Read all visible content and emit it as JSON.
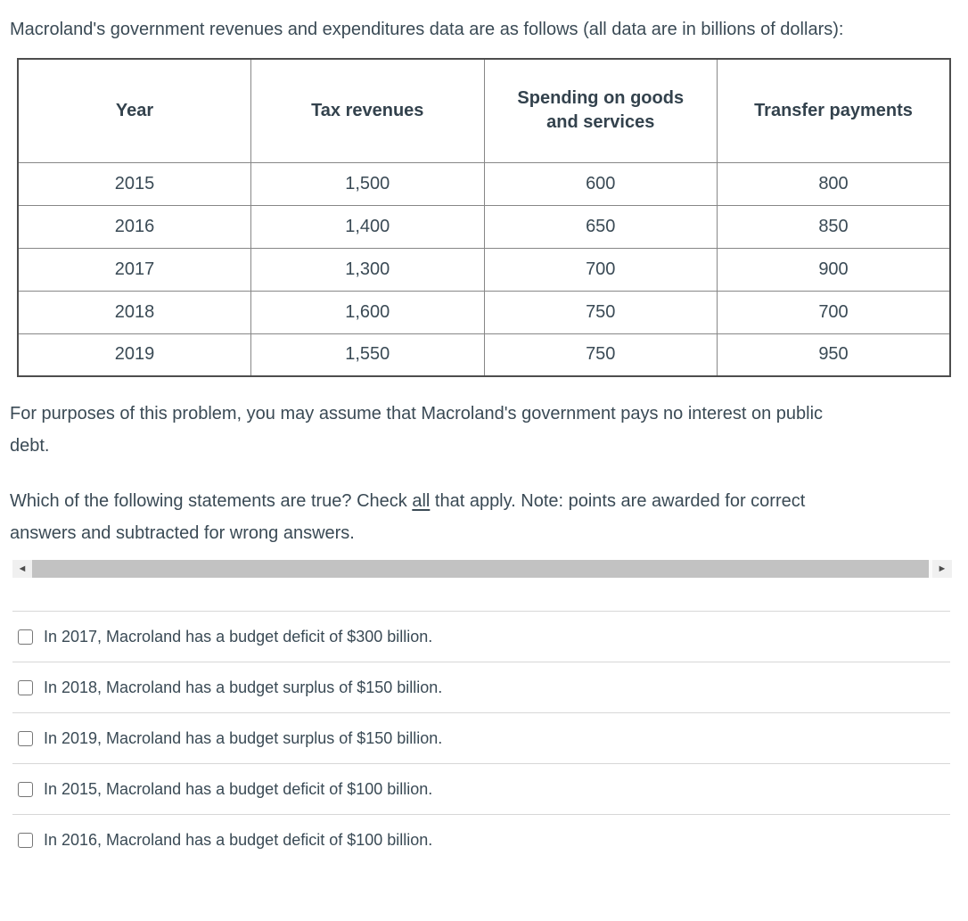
{
  "page": {
    "intro": "Macroland's government revenues and expenditures data are as follows (all data are in billions of dollars):",
    "assumption": "For purposes of this problem, you may assume that Macroland's government pays no interest on public debt.",
    "question": {
      "prefix": "Which of the following statements are true? Check ",
      "underlined": "all",
      "suffix": " that apply. Note: points are awarded for correct answers and subtracted for wrong answers."
    }
  },
  "table": {
    "headers": [
      "Year",
      "Tax revenues",
      "Spending on goods and services",
      "Transfer payments"
    ],
    "rows": [
      [
        "2015",
        "1,500",
        "600",
        "800"
      ],
      [
        "2016",
        "1,400",
        "650",
        "850"
      ],
      [
        "2017",
        "1,300",
        "700",
        "900"
      ],
      [
        "2018",
        "1,600",
        "750",
        "700"
      ],
      [
        "2019",
        "1,550",
        "750",
        "950"
      ]
    ],
    "units": "billions of dollars"
  },
  "options": [
    {
      "label": "In 2017, Macroland has a budget deficit of $300 billion.",
      "checked": false
    },
    {
      "label": "In 2018, Macroland has a budget surplus of $150 billion.",
      "checked": false
    },
    {
      "label": "In 2019, Macroland has a budget surplus of $150 billion.",
      "checked": false
    },
    {
      "label": "In 2015, Macroland has a budget deficit of $100 billion.",
      "checked": false
    },
    {
      "label": "In 2016, Macroland has a budget deficit of $100 billion.",
      "checked": false
    }
  ],
  "scrollbar": {
    "left_arrow": "◄",
    "right_arrow": "►"
  },
  "colors": {
    "text": "#3a4a55",
    "table_outer_border": "#4d4d4d",
    "table_inner_border": "#878787",
    "divider": "#d7d7d7",
    "scrollbar_thumb": "#c2c2c2",
    "scrollbar_button_bg": "#f0f0f0",
    "checkbox_border": "#767676"
  }
}
